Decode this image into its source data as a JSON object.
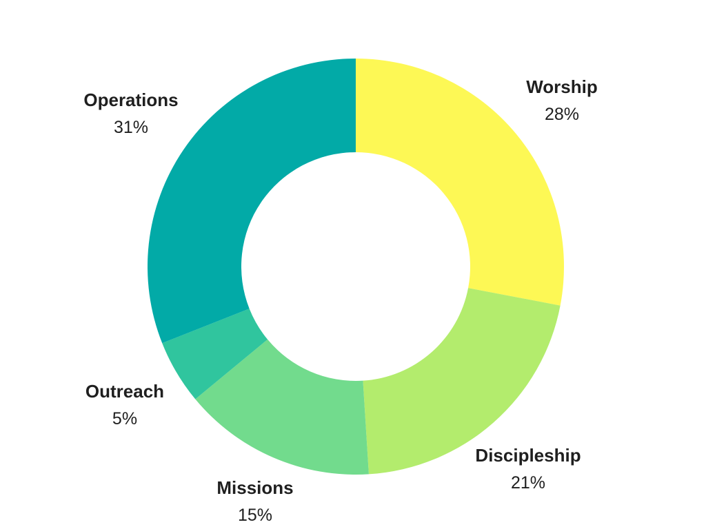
{
  "chart_data": {
    "type": "pie",
    "donut": true,
    "start_angle_deg": 0,
    "direction": "clockwise",
    "slices": [
      {
        "label": "Worship",
        "value_label": "28%",
        "value": 28,
        "color": "#fdf855"
      },
      {
        "label": "Discipleship",
        "value_label": "21%",
        "value": 21,
        "color": "#b3ec6d"
      },
      {
        "label": "Missions",
        "value_label": "15%",
        "value": 15,
        "color": "#72db8d"
      },
      {
        "label": "Outreach",
        "value_label": "5%",
        "value": 5,
        "color": "#30c59e"
      },
      {
        "label": "Operations",
        "value_label": "31%",
        "value": 31,
        "color": "#02aaa7"
      }
    ]
  }
}
